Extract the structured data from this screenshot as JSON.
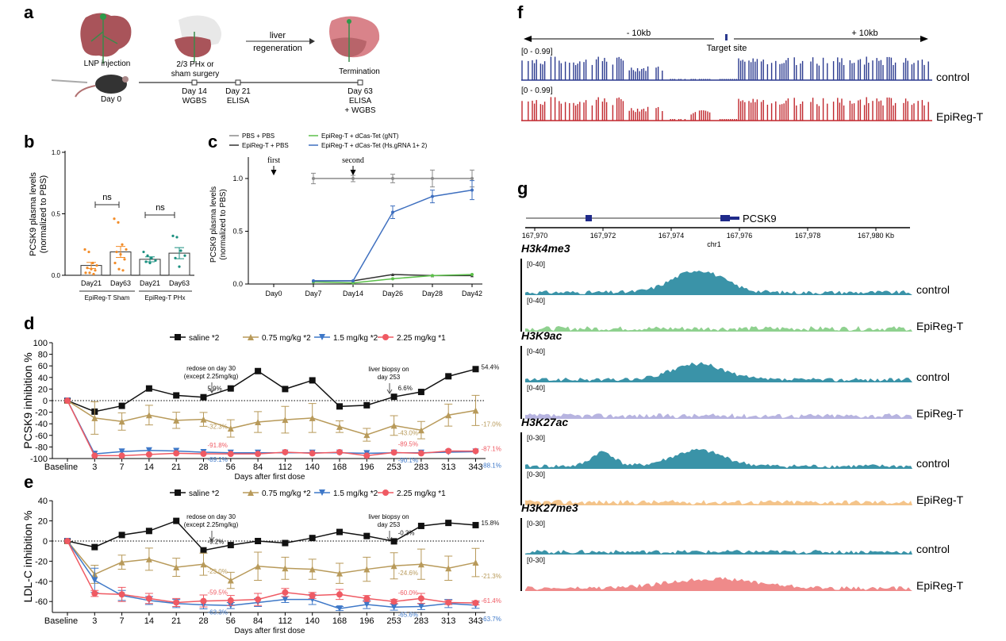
{
  "panels": {
    "a": "a",
    "b": "b",
    "c": "c",
    "d": "d",
    "e": "e",
    "f": "f",
    "g": "g"
  },
  "panel_a": {
    "lnp": "LNP injection",
    "day0": "Day 0",
    "phx1": "2/3 PHx or",
    "phx2": "sham surgery",
    "regen1": "liver",
    "regen2": "regeneration",
    "termination": "Termination",
    "d14": "Day 14",
    "d14b": "WGBS",
    "d21": "Day 21",
    "d21b": "ELISA",
    "d63": "Day 63",
    "d63b": "ELISA",
    "d63c": "+ WGBS"
  },
  "panel_f": {
    "left": "- 10kb",
    "right": "+ 10kb",
    "target": "Target site",
    "range1": "[0 - 0.99]",
    "range2": "[0 - 0.99]",
    "track1": "control",
    "track2": "EpiReg-T",
    "colors": {
      "control": "#2b3a8f",
      "EpiReg-T": "#c0272d"
    }
  },
  "panel_g": {
    "gene": "PCSK9",
    "chrom": "chr1",
    "ticks": [
      "167,970",
      "167,972",
      "167,974",
      "167,976",
      "167,978",
      "167,980 Kb"
    ],
    "marks": [
      {
        "name": "H3k4me3",
        "range": "[0-40]",
        "control_color": "#3a93a8",
        "epi_color": "#8fd18f"
      },
      {
        "name": "H3K9ac",
        "range": "[0-40]",
        "control_color": "#3a93a8",
        "epi_color": "#b7b4e0"
      },
      {
        "name": "H3K27ac",
        "range": "[0-30]",
        "control_color": "#3a93a8",
        "epi_color": "#f4c48a"
      },
      {
        "name": "H3K27me3",
        "range": "[0-30]",
        "control_color": "#3a93a8",
        "epi_color": "#ef8a8a"
      }
    ],
    "control": "control",
    "epi": "EpiReg-T"
  },
  "chart_data": [
    {
      "id": "b",
      "type": "bar",
      "ylabel1": "PCSK9 plasma levels",
      "ylabel2": "(normalized to PBS)",
      "categories": [
        "Day21",
        "Day63",
        "Day21",
        "Day63"
      ],
      "groups": [
        "EpiReg-T Sham",
        "EpiReg-T PHx"
      ],
      "values": [
        0.08,
        0.19,
        0.13,
        0.18
      ],
      "errors": [
        0.025,
        0.045,
        0.02,
        0.045
      ],
      "points": [
        [
          0.21,
          0.19,
          0.1,
          0.08,
          0.06,
          0.05,
          0.04,
          0.02,
          0.02,
          0.01
        ],
        [
          0.46,
          0.43,
          0.25,
          0.21,
          0.19,
          0.17,
          0.13,
          0.1,
          0.05,
          0.04
        ],
        [
          0.19,
          0.16,
          0.14,
          0.12,
          0.11,
          0.1
        ],
        [
          0.32,
          0.31,
          0.2,
          0.16,
          0.14,
          0.07
        ]
      ],
      "colors": [
        "#f28c28",
        "#f28c28",
        "#1b9080",
        "#1b9080"
      ],
      "significance": [
        "ns",
        "ns"
      ],
      "yticks": [
        "0.0",
        "0.5",
        "1.0"
      ],
      "ylim": [
        0,
        1.0
      ]
    },
    {
      "id": "c",
      "type": "line",
      "ylabel1": "PCSK9 plasma levels",
      "ylabel2": "(normalized to PBS)",
      "categories": [
        "Day0",
        "Day7",
        "Day14",
        "Day26",
        "Day28",
        "Day42"
      ],
      "annotations": [
        "first",
        "second"
      ],
      "yticks": [
        "0.0",
        "0.5",
        "1.0"
      ],
      "ylim": [
        0,
        1.2
      ],
      "series": [
        {
          "name": "PBS + PBS",
          "color": "#8a8a8a",
          "values": [
            null,
            1.0,
            1.0,
            1.0,
            1.0,
            1.0
          ],
          "errors": [
            0,
            0.05,
            0.03,
            0.04,
            0.08,
            0.08
          ]
        },
        {
          "name": "EpiReg-T + PBS",
          "color": "#333333",
          "values": [
            null,
            0.03,
            0.03,
            0.09,
            0.08,
            0.08
          ],
          "errors": [
            0,
            0.01,
            0.01,
            0.01,
            0.01,
            0.01
          ]
        },
        {
          "name": "EpiReg-T + dCas-Tet  (gNT)",
          "color": "#5cc04a",
          "values": [
            null,
            0.02,
            0.01,
            0.05,
            0.08,
            0.09
          ],
          "errors": [
            0,
            0.01,
            0.01,
            0.01,
            0.01,
            0.01
          ]
        },
        {
          "name": "EpiReg-T + dCas-Tet  (Hs.gRNA 1+ 2)",
          "color": "#3e6fbf",
          "values": [
            null,
            0.03,
            0.03,
            0.68,
            0.83,
            0.89
          ],
          "errors": [
            0,
            0.01,
            0.01,
            0.06,
            0.06,
            0.09
          ]
        }
      ]
    },
    {
      "id": "d",
      "type": "line",
      "ylabel": "PCSK9 inhibition %",
      "xlabel": "Days after first dose",
      "categories": [
        "Baseline",
        "3",
        "7",
        "14",
        "21",
        "28",
        "56",
        "84",
        "112",
        "140",
        "168",
        "196",
        "253",
        "283",
        "313",
        "343"
      ],
      "yticks": [
        "100",
        "80",
        "60",
        "40",
        "20",
        "0",
        "-20",
        "-40",
        "-60",
        "-80",
        "-100"
      ],
      "ylim": [
        -100,
        100
      ],
      "annotations": {
        "redose1": "redose on day 30",
        "redose2": "(except 2.25mg/kg)",
        "biopsy1": "liver biopsy on",
        "biopsy2": "day 253"
      },
      "series": [
        {
          "name": "saline *2",
          "color": "#111111",
          "marker": "square",
          "values": [
            0,
            -19,
            -9,
            21,
            9,
            5.9,
            21,
            51,
            20,
            35,
            -10,
            -8,
            6.6,
            15,
            42,
            54.4
          ],
          "labels": {
            "5": "5.9%",
            "12": "6.6%",
            "15": "54.4%"
          }
        },
        {
          "name": "0.75 mg/kg *2",
          "color": "#b89a5a",
          "marker": "triangle",
          "values": [
            0,
            -30,
            -36,
            -25,
            -34,
            -32.3,
            -48,
            -37,
            -33,
            -30,
            -45,
            -59,
            -43.0,
            -51,
            -25,
            -17.0
          ],
          "errors": [
            0,
            28,
            15,
            17,
            14,
            12,
            15,
            18,
            23,
            25,
            10,
            11,
            17,
            15,
            19,
            26
          ],
          "labels": {
            "5": "-32.3%",
            "12": "-43.0%",
            "15": "-17.0%"
          }
        },
        {
          "name": "1.5 mg/kg *2",
          "color": "#3e78c8",
          "marker": "triangle-down",
          "values": [
            0,
            -92,
            -88,
            -86,
            -87,
            -89.1,
            -90,
            -90,
            -90,
            -90,
            -90,
            -91,
            -90.1,
            -90,
            -89,
            -88.1
          ],
          "labels": {
            "5": "-89.1%",
            "12": "-90.1%",
            "15": "-88.1%"
          }
        },
        {
          "name": "2.25 mg/kg *1",
          "color": "#ef5a63",
          "marker": "circle",
          "values": [
            0,
            -95,
            -95,
            -93,
            -91,
            -91.8,
            -92,
            -92,
            -89,
            -91,
            -89,
            -95,
            -89.5,
            -91,
            -87,
            -87.1
          ],
          "labels": {
            "5": "-91.8%",
            "12": "-89.5%",
            "15": "-87.1%"
          }
        }
      ]
    },
    {
      "id": "e",
      "type": "line",
      "ylabel": "LDL-C inhibition %",
      "xlabel": "Days after first dose",
      "categories": [
        "Baseline",
        "3",
        "7",
        "14",
        "21",
        "28",
        "56",
        "84",
        "112",
        "140",
        "168",
        "196",
        "253",
        "283",
        "313",
        "343"
      ],
      "yticks": [
        "40",
        "20",
        "0",
        "-20",
        "-40",
        "-60"
      ],
      "ylim": [
        -70,
        40
      ],
      "annotations": {
        "redose1": "redose on day 30",
        "redose2": "(except 2.25mg/kg)",
        "biopsy1": "liver biopsy on",
        "biopsy2": "day 253"
      },
      "series": [
        {
          "name": "saline *2",
          "color": "#111111",
          "marker": "square",
          "values": [
            0,
            -6,
            6,
            10,
            20,
            -9.2,
            -4,
            0,
            -2,
            3,
            9,
            5,
            -0.3,
            15,
            18,
            15.8
          ],
          "labels": {
            "5": "-9.2%",
            "12": "-0.3%",
            "15": "15.8%"
          }
        },
        {
          "name": "0.75 mg/kg *2",
          "color": "#b89a5a",
          "marker": "triangle",
          "values": [
            0,
            -33,
            -21,
            -18,
            -26,
            -23.0,
            -39,
            -25,
            -27,
            -28,
            -32,
            -28,
            -24.6,
            -23,
            -27,
            -21.3
          ],
          "errors": [
            0,
            9,
            7,
            11,
            9,
            11,
            8,
            14,
            11,
            10,
            10,
            12,
            13,
            15,
            12,
            14
          ],
          "labels": {
            "5": "-23.0%",
            "12": "-24.6%",
            "15": "-21.3%"
          }
        },
        {
          "name": "1.5 mg/kg *2",
          "color": "#3e78c8",
          "marker": "triangle-down",
          "values": [
            0,
            -39,
            -54,
            -59,
            -62,
            -63.3,
            -64,
            -61,
            -58,
            -58,
            -67,
            -63,
            -65.6,
            -65,
            -62,
            -63.7
          ],
          "errors": [
            0,
            12,
            5,
            4,
            4,
            4,
            3,
            4,
            3,
            5,
            2,
            4,
            3,
            3,
            4,
            3
          ],
          "labels": {
            "5": "-63.3%",
            "12": "-65.6%",
            "15": "-63.7%"
          }
        },
        {
          "name": "2.25 mg/kg *1",
          "color": "#ef5a63",
          "marker": "circle",
          "values": [
            0,
            -52,
            -53,
            -57,
            -61,
            -59.5,
            -59,
            -58,
            -51,
            -54,
            -53,
            -57,
            -60.0,
            -57,
            -61,
            -61.4
          ],
          "errors": [
            0,
            3,
            7,
            5,
            4,
            6,
            5,
            6,
            4,
            3,
            5,
            3,
            2,
            5,
            2,
            2
          ],
          "labels": {
            "5": "-59.5%",
            "12": "-60.0%",
            "15": "-61.4%"
          }
        }
      ]
    }
  ]
}
